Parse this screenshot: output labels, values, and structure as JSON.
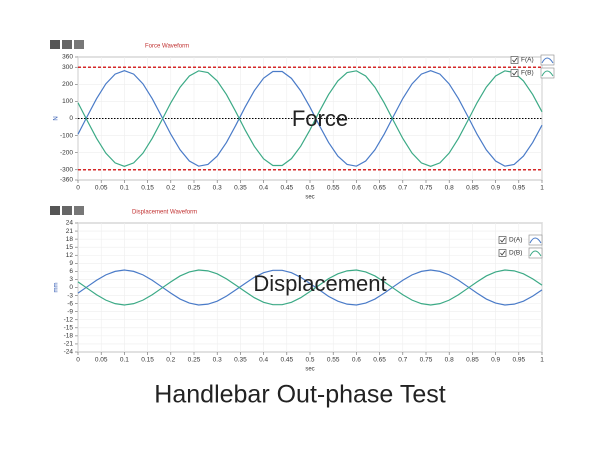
{
  "caption": "Handlebar Out-phase Test",
  "chart_data": [
    {
      "type": "line",
      "title": "Force Waveform",
      "annotation": "Force",
      "x_label": "sec",
      "y_label": "N",
      "x": [
        0,
        0.02,
        0.04,
        0.06,
        0.08,
        0.1,
        0.12,
        0.14,
        0.16,
        0.18,
        0.2,
        0.22,
        0.24,
        0.26,
        0.28,
        0.3,
        0.32,
        0.34,
        0.36,
        0.38,
        0.4,
        0.42,
        0.44,
        0.46,
        0.48,
        0.5,
        0.52,
        0.54,
        0.56,
        0.58,
        0.6,
        0.62,
        0.64,
        0.66,
        0.68,
        0.7,
        0.72,
        0.74,
        0.76,
        0.78,
        0.8,
        0.82,
        0.84,
        0.86,
        0.88,
        0.9,
        0.92,
        0.94,
        0.96,
        0.98,
        1
      ],
      "series": [
        {
          "name": "F(A)",
          "color": "#4a7bc8",
          "values": [
            -92,
            13,
            116,
            203,
            260,
            280,
            260,
            203,
            116,
            13,
            -92,
            -183,
            -249,
            -279,
            -269,
            -220,
            -140,
            -40,
            66,
            163,
            236,
            275,
            275,
            235,
            162,
            66,
            -40,
            -140,
            -220,
            -269,
            -279,
            -249,
            -183,
            -91,
            14,
            117,
            203,
            260,
            280,
            260,
            202,
            116,
            13,
            -92,
            -184,
            -249,
            -279,
            -269,
            -220,
            -140,
            -39
          ]
        },
        {
          "name": "F(B)",
          "color": "#3caa86",
          "values": [
            92,
            -13,
            -116,
            -203,
            -260,
            -280,
            -260,
            -203,
            -116,
            -13,
            92,
            183,
            249,
            279,
            269,
            220,
            140,
            40,
            -66,
            -163,
            -236,
            -275,
            -275,
            -235,
            -162,
            -66,
            40,
            140,
            220,
            269,
            279,
            249,
            183,
            91,
            -14,
            -117,
            -203,
            -260,
            -280,
            -260,
            -202,
            -116,
            -13,
            92,
            184,
            249,
            279,
            269,
            220,
            140,
            39
          ]
        }
      ],
      "xlim": [
        0,
        1
      ],
      "xticks": [
        0,
        0.05,
        0.1,
        0.15,
        0.2,
        0.25,
        0.3,
        0.35,
        0.4,
        0.45,
        0.5,
        0.55,
        0.6,
        0.65,
        0.7,
        0.75,
        0.8,
        0.85,
        0.9,
        0.95,
        1
      ],
      "ylim": [
        -360,
        360
      ],
      "yticks": [
        360,
        300,
        200,
        100,
        0,
        -100,
        -200,
        -300,
        -360
      ],
      "reference_lines": [
        {
          "value": 300,
          "color": "#d62828",
          "style": "dashed"
        },
        {
          "value": -300,
          "color": "#d62828",
          "style": "dashed"
        },
        {
          "value": 0,
          "color": "#000000",
          "style": "dotted"
        }
      ],
      "grid": true
    },
    {
      "type": "line",
      "title": "Displacement Waveform",
      "annotation": "Displacement",
      "x_label": "sec",
      "y_label": "mm",
      "x": [
        0,
        0.02,
        0.04,
        0.06,
        0.08,
        0.1,
        0.12,
        0.14,
        0.16,
        0.18,
        0.2,
        0.22,
        0.24,
        0.26,
        0.28,
        0.3,
        0.32,
        0.34,
        0.36,
        0.38,
        0.4,
        0.42,
        0.44,
        0.46,
        0.48,
        0.5,
        0.52,
        0.54,
        0.56,
        0.58,
        0.6,
        0.62,
        0.64,
        0.66,
        0.68,
        0.7,
        0.72,
        0.74,
        0.76,
        0.78,
        0.8,
        0.82,
        0.84,
        0.86,
        0.88,
        0.9,
        0.92,
        0.94,
        0.96,
        0.98,
        1
      ],
      "series": [
        {
          "name": "D(A)",
          "color": "#4a7bc8",
          "values": [
            -2.1,
            0.3,
            2.7,
            4.7,
            6.0,
            6.5,
            6.0,
            4.7,
            2.7,
            0.3,
            -2.1,
            -4.3,
            -5.8,
            -6.5,
            -6.2,
            -5.1,
            -3.2,
            -0.9,
            1.5,
            3.8,
            5.5,
            6.4,
            6.4,
            5.5,
            3.8,
            1.5,
            -0.9,
            -3.3,
            -5.1,
            -6.2,
            -6.5,
            -5.8,
            -4.3,
            -2.1,
            0.3,
            2.7,
            4.7,
            6.0,
            6.5,
            6.0,
            4.7,
            2.7,
            0.3,
            -2.1,
            -4.3,
            -5.8,
            -6.5,
            -6.2,
            -5.1,
            -3.2,
            -0.9
          ]
        },
        {
          "name": "D(B)",
          "color": "#3caa86",
          "values": [
            2.1,
            -0.3,
            -2.7,
            -4.7,
            -6.0,
            -6.5,
            -6.0,
            -4.7,
            -2.7,
            -0.3,
            2.1,
            4.3,
            5.8,
            6.5,
            6.2,
            5.1,
            3.2,
            0.9,
            -1.5,
            -3.8,
            -5.5,
            -6.4,
            -6.4,
            -5.5,
            -3.8,
            -1.5,
            0.9,
            3.3,
            5.1,
            6.2,
            6.5,
            5.8,
            4.3,
            2.1,
            -0.3,
            -2.7,
            -4.7,
            -6.0,
            -6.5,
            -6.0,
            -4.7,
            -2.7,
            -0.3,
            2.1,
            4.3,
            5.8,
            6.5,
            6.2,
            5.1,
            3.2,
            0.9
          ]
        }
      ],
      "xlim": [
        0,
        1
      ],
      "xticks": [
        0,
        0.05,
        0.1,
        0.15,
        0.2,
        0.25,
        0.3,
        0.35,
        0.4,
        0.45,
        0.5,
        0.55,
        0.6,
        0.65,
        0.7,
        0.75,
        0.8,
        0.85,
        0.9,
        0.95,
        1
      ],
      "ylim": [
        -24,
        24
      ],
      "yticks": [
        24,
        21,
        18,
        15,
        12,
        9,
        6,
        3,
        0,
        -3,
        -6,
        -9,
        -12,
        -15,
        -18,
        -21,
        -24
      ],
      "grid": true
    }
  ]
}
